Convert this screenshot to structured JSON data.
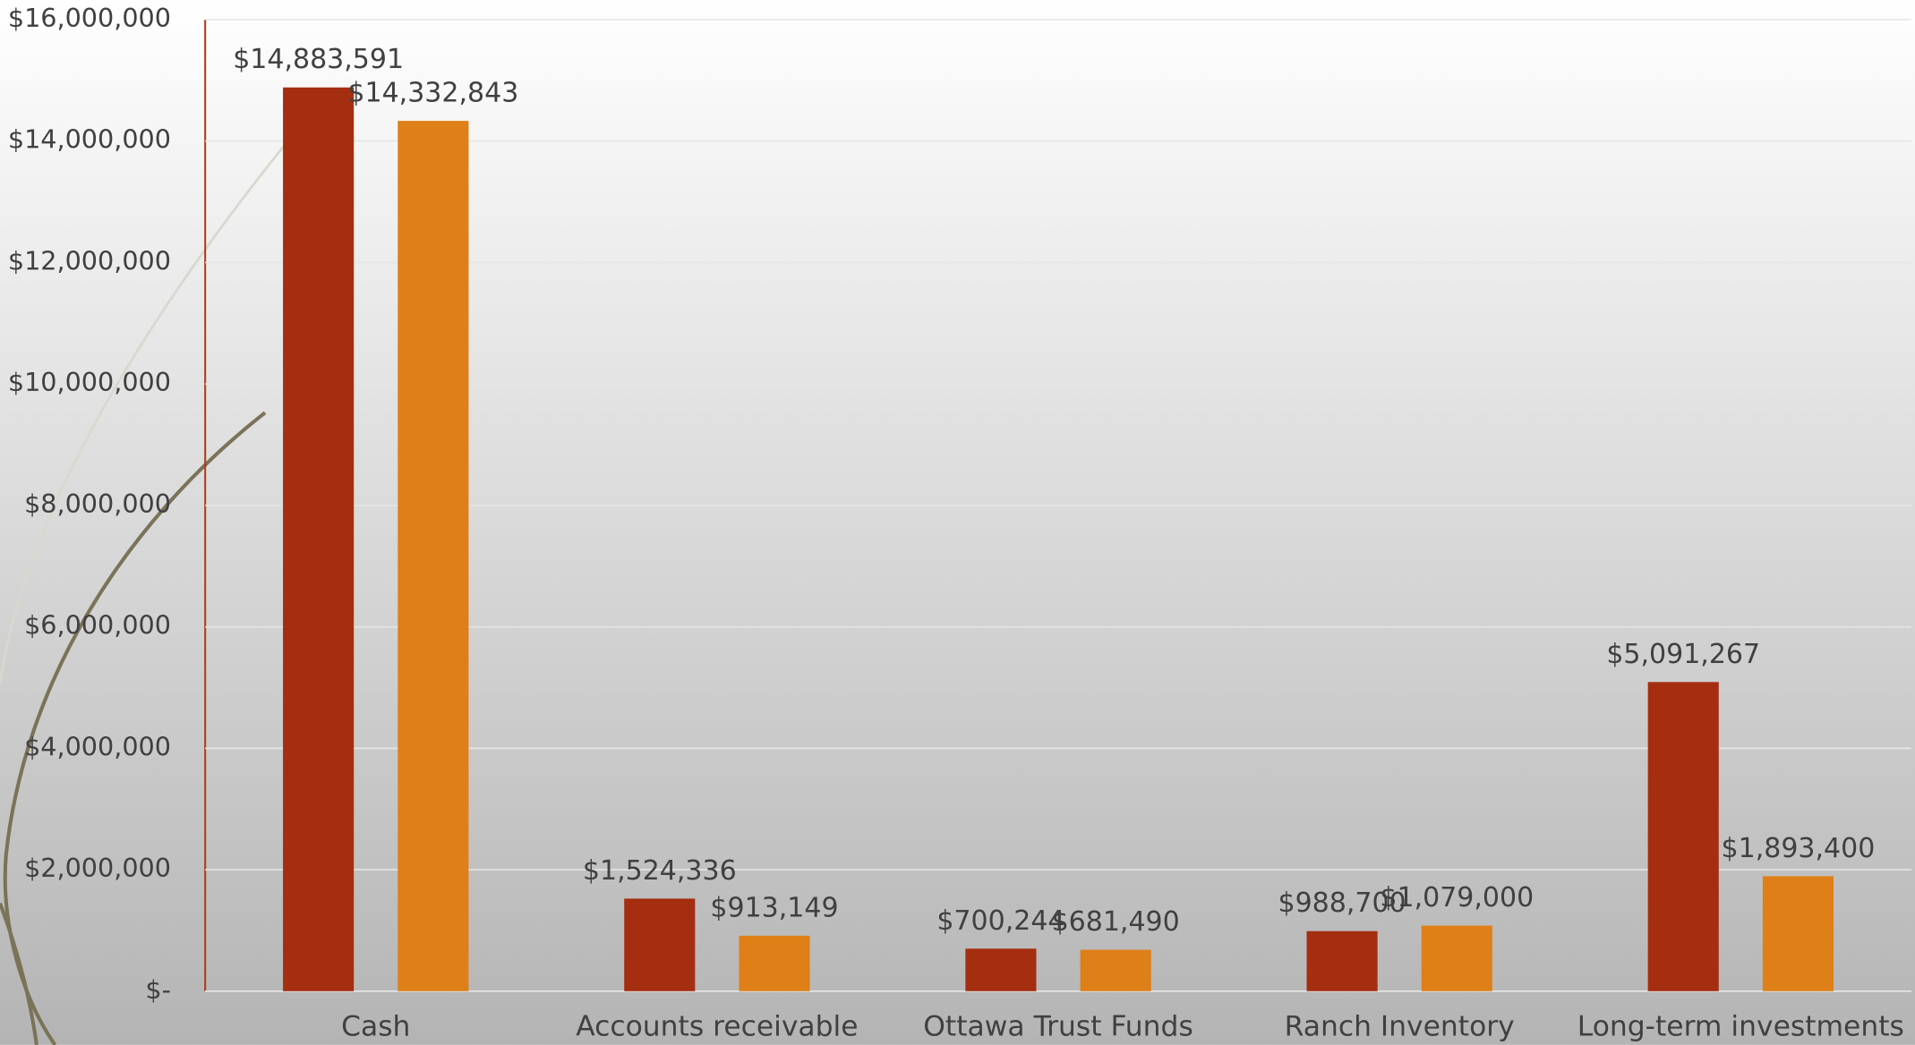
{
  "chart_data": {
    "type": "bar",
    "categories": [
      "Cash",
      "Accounts receivable",
      "Ottawa Trust Funds",
      "Ranch Inventory",
      "Long-term investments"
    ],
    "series": [
      {
        "color": "#a52e10",
        "values": [
          14883591,
          1524336,
          700244,
          988700,
          5091267
        ],
        "value_labels": [
          "$14,883,591",
          "$1,524,336",
          "$700,244",
          "$988,700",
          "$5,091,267"
        ]
      },
      {
        "color": "#df7f18",
        "values": [
          14332843,
          913149,
          681490,
          1079000,
          1893400
        ],
        "value_labels": [
          "$14,332,843",
          "$913,149",
          "$681,490",
          "$1,079,000",
          "$1,893,400"
        ]
      }
    ],
    "ylim": [
      0,
      16000000
    ],
    "yticks": [
      {
        "value": 0,
        "label": "$-"
      },
      {
        "value": 2000000,
        "label": "$2,000,000"
      },
      {
        "value": 4000000,
        "label": "$4,000,000"
      },
      {
        "value": 6000000,
        "label": "$6,000,000"
      },
      {
        "value": 8000000,
        "label": "$8,000,000"
      },
      {
        "value": 10000000,
        "label": "$10,000,000"
      },
      {
        "value": 12000000,
        "label": "$12,000,000"
      },
      {
        "value": 14000000,
        "label": "$14,000,000"
      },
      {
        "value": 16000000,
        "label": "$16,000,000"
      }
    ],
    "grid": true
  }
}
